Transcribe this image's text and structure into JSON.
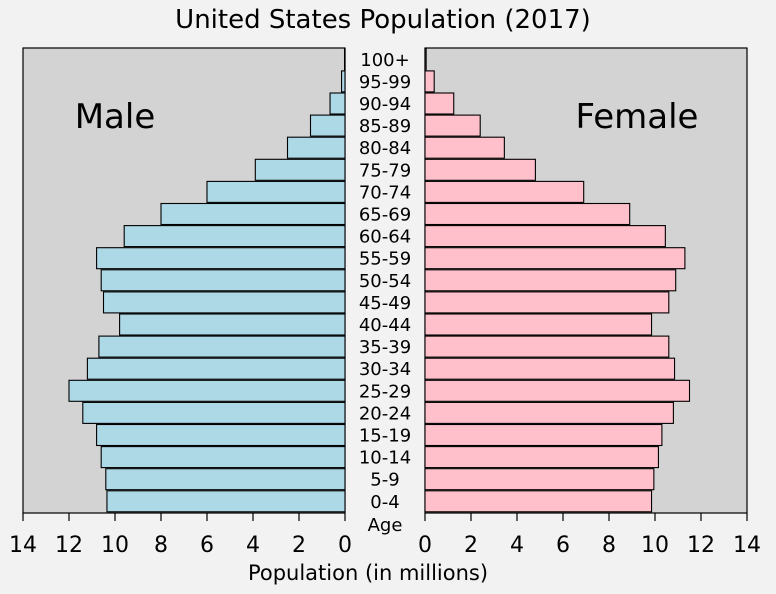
{
  "chart_data": {
    "type": "bar",
    "title": "United States Population (2017)",
    "xlabel": "Population (in millions)",
    "ylabel": "Age",
    "panels": {
      "left": "Male",
      "right": "Female"
    },
    "xlim": [
      0,
      14
    ],
    "xticks": [
      "0",
      "2",
      "4",
      "6",
      "8",
      "10",
      "12",
      "14"
    ],
    "categories": [
      "100+",
      "95-99",
      "90-94",
      "85-89",
      "80-84",
      "75-79",
      "70-74",
      "65-69",
      "60-64",
      "55-59",
      "50-54",
      "45-49",
      "40-44",
      "35-39",
      "30-34",
      "25-29",
      "20-24",
      "15-19",
      "10-14",
      "5-9",
      "0-4"
    ],
    "series": [
      {
        "name": "Male",
        "color": "#add8e6",
        "values": [
          0.02,
          0.15,
          0.65,
          1.5,
          2.5,
          3.9,
          6.0,
          8.0,
          9.6,
          10.8,
          10.6,
          10.5,
          9.8,
          10.7,
          11.2,
          12.0,
          11.4,
          10.8,
          10.6,
          10.4,
          10.35
        ]
      },
      {
        "name": "Female",
        "color": "#ffc0cb",
        "values": [
          0.05,
          0.4,
          1.25,
          2.4,
          3.45,
          4.8,
          6.9,
          8.9,
          10.45,
          11.3,
          10.9,
          10.6,
          9.85,
          10.6,
          10.85,
          11.5,
          10.8,
          10.3,
          10.15,
          9.95,
          9.85
        ]
      }
    ],
    "panel_background": "#d3d3d3",
    "page_background": "#f2f2f2"
  }
}
